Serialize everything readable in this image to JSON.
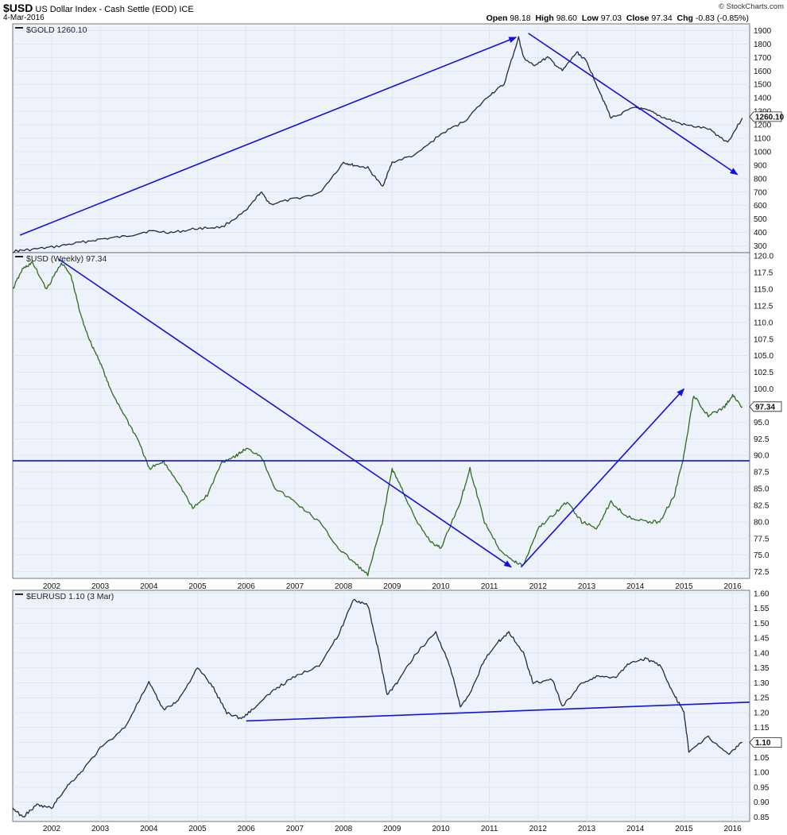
{
  "header": {
    "symbol": "$USD",
    "title": "US Dollar Index - Cash Settle (EOD) ICE",
    "date": "4-Mar-2016",
    "copyright": "© StockCharts.com",
    "open_label": "Open",
    "open_value": "98.18",
    "high_label": "High",
    "high_value": "98.60",
    "low_label": "Low",
    "low_value": "97.03",
    "close_label": "Close",
    "close_value": "97.34",
    "chg_label": "Chg",
    "chg_value": "-0.83 (-0.85%)"
  },
  "colors": {
    "background": "#ffffff",
    "plot_bg": "#eef3fb",
    "gold_line": "#1f2a44",
    "usd_line": "#2e6b1d",
    "usd_line_up": "#111111",
    "eur_line": "#1f2a44",
    "annotation": "#1010e0",
    "grid": "#d8dee8"
  },
  "chart_data": [
    {
      "type": "line",
      "name": "gold",
      "label": "$GOLD 1260.10",
      "last_value_label": "1260.10",
      "last_value": 1260.1,
      "ylim": [
        250,
        1950
      ],
      "yticks": [
        300,
        400,
        500,
        600,
        700,
        800,
        900,
        1000,
        1100,
        1200,
        1300,
        1400,
        1500,
        1600,
        1700,
        1800,
        1900
      ],
      "x": [
        2001.2,
        2001.5,
        2002.0,
        2002.5,
        2003.0,
        2003.5,
        2004.0,
        2004.5,
        2005.0,
        2005.5,
        2006.0,
        2006.3,
        2006.5,
        2007.0,
        2007.5,
        2008.0,
        2008.2,
        2008.5,
        2008.8,
        2009.0,
        2009.5,
        2010.0,
        2010.5,
        2011.0,
        2011.3,
        2011.6,
        2011.7,
        2011.9,
        2012.2,
        2012.5,
        2012.8,
        2013.0,
        2013.3,
        2013.5,
        2014.0,
        2014.3,
        2014.6,
        2015.0,
        2015.5,
        2015.9,
        2016.2
      ],
      "values": [
        260,
        270,
        290,
        320,
        350,
        370,
        410,
        400,
        430,
        440,
        560,
        700,
        610,
        650,
        690,
        920,
        900,
        880,
        740,
        920,
        980,
        1130,
        1230,
        1420,
        1500,
        1850,
        1700,
        1640,
        1700,
        1600,
        1740,
        1670,
        1420,
        1250,
        1330,
        1300,
        1250,
        1200,
        1170,
        1070,
        1250
      ],
      "annotations": [
        {
          "from": [
            2001.35,
            380
          ],
          "to": [
            2011.55,
            1850
          ]
        },
        {
          "from": [
            2011.8,
            1880
          ],
          "to": [
            2016.1,
            830
          ]
        }
      ]
    },
    {
      "type": "line",
      "name": "usd",
      "label": "$USD (Weekly) 97.34",
      "last_value_label": "97.34",
      "last_value": 97.34,
      "ylim": [
        71.5,
        120.5
      ],
      "yticks": [
        72.5,
        75.0,
        77.5,
        80.0,
        82.5,
        85.0,
        87.5,
        90.0,
        92.5,
        95.0,
        97.5,
        100.0,
        102.5,
        105.0,
        107.5,
        110.0,
        112.5,
        115.0,
        117.5,
        120.0
      ],
      "x": [
        2001.2,
        2001.4,
        2001.6,
        2001.9,
        2002.2,
        2002.4,
        2002.6,
        2002.8,
        2003.0,
        2003.2,
        2003.5,
        2003.8,
        2004.0,
        2004.3,
        2004.6,
        2004.9,
        2005.2,
        2005.5,
        2005.8,
        2006.0,
        2006.3,
        2006.6,
        2007.0,
        2007.5,
        2007.9,
        2008.2,
        2008.5,
        2008.8,
        2009.0,
        2009.2,
        2009.5,
        2009.8,
        2010.0,
        2010.4,
        2010.6,
        2010.9,
        2011.2,
        2011.5,
        2011.7,
        2012.0,
        2012.3,
        2012.6,
        2012.9,
        2013.2,
        2013.5,
        2013.8,
        2014.2,
        2014.5,
        2014.8,
        2015.0,
        2015.2,
        2015.5,
        2015.8,
        2016.0,
        2016.2
      ],
      "values": [
        115,
        118,
        119,
        115,
        119,
        117,
        111,
        107,
        104,
        100,
        96,
        92,
        88,
        89,
        86,
        82,
        84,
        89,
        90,
        91,
        90,
        85,
        83,
        80,
        76,
        74,
        72,
        80,
        88,
        85,
        80,
        77,
        76,
        83,
        88,
        80,
        76,
        74,
        73.5,
        79,
        81,
        83,
        80,
        79,
        83,
        81,
        80,
        80,
        84,
        90,
        99,
        96,
        97,
        99,
        97.3
      ],
      "hlines": [
        {
          "y": 89.2
        }
      ],
      "annotations": [
        {
          "from": [
            2002.15,
            119.5
          ],
          "to": [
            2011.45,
            73.2
          ]
        },
        {
          "from": [
            2011.65,
            73.2
          ],
          "to": [
            2015.0,
            100.0
          ]
        }
      ]
    },
    {
      "type": "line",
      "name": "eurusd",
      "label": "$EURUSD 1.10 (3 Mar)",
      "last_value_label": "1.10",
      "last_value": 1.1,
      "ylim": [
        0.835,
        1.61
      ],
      "yticks": [
        0.85,
        0.9,
        0.95,
        1.0,
        1.05,
        1.1,
        1.15,
        1.2,
        1.25,
        1.3,
        1.35,
        1.4,
        1.45,
        1.5,
        1.55,
        1.6
      ],
      "x": [
        2001.2,
        2001.4,
        2001.7,
        2002.0,
        2002.3,
        2002.6,
        2003.0,
        2003.5,
        2004.0,
        2004.3,
        2004.6,
        2005.0,
        2005.3,
        2005.6,
        2005.9,
        2006.2,
        2006.6,
        2007.0,
        2007.5,
        2007.9,
        2008.2,
        2008.5,
        2008.7,
        2008.9,
        2009.1,
        2009.5,
        2009.9,
        2010.2,
        2010.4,
        2010.6,
        2010.9,
        2011.2,
        2011.4,
        2011.7,
        2011.9,
        2012.3,
        2012.5,
        2012.9,
        2013.2,
        2013.6,
        2013.9,
        2014.2,
        2014.5,
        2014.8,
        2015.0,
        2015.1,
        2015.5,
        2015.9,
        2016.2
      ],
      "values": [
        0.88,
        0.85,
        0.89,
        0.88,
        0.95,
        1.0,
        1.08,
        1.15,
        1.3,
        1.21,
        1.24,
        1.35,
        1.29,
        1.2,
        1.18,
        1.22,
        1.28,
        1.32,
        1.36,
        1.46,
        1.58,
        1.56,
        1.42,
        1.26,
        1.3,
        1.4,
        1.47,
        1.35,
        1.22,
        1.26,
        1.38,
        1.44,
        1.47,
        1.4,
        1.3,
        1.31,
        1.22,
        1.3,
        1.32,
        1.32,
        1.37,
        1.38,
        1.36,
        1.26,
        1.2,
        1.07,
        1.12,
        1.06,
        1.1
      ],
      "annotations": [
        {
          "from": [
            2006.0,
            1.172
          ],
          "to": [
            2016.5,
            1.235
          ],
          "arrow": false
        }
      ]
    }
  ],
  "x_axis": {
    "labels": [
      "2002",
      "2003",
      "2004",
      "2005",
      "2006",
      "2007",
      "2008",
      "2009",
      "2010",
      "2011",
      "2012",
      "2013",
      "2014",
      "2015",
      "2016"
    ],
    "range": [
      2001.2,
      2016.35
    ]
  }
}
